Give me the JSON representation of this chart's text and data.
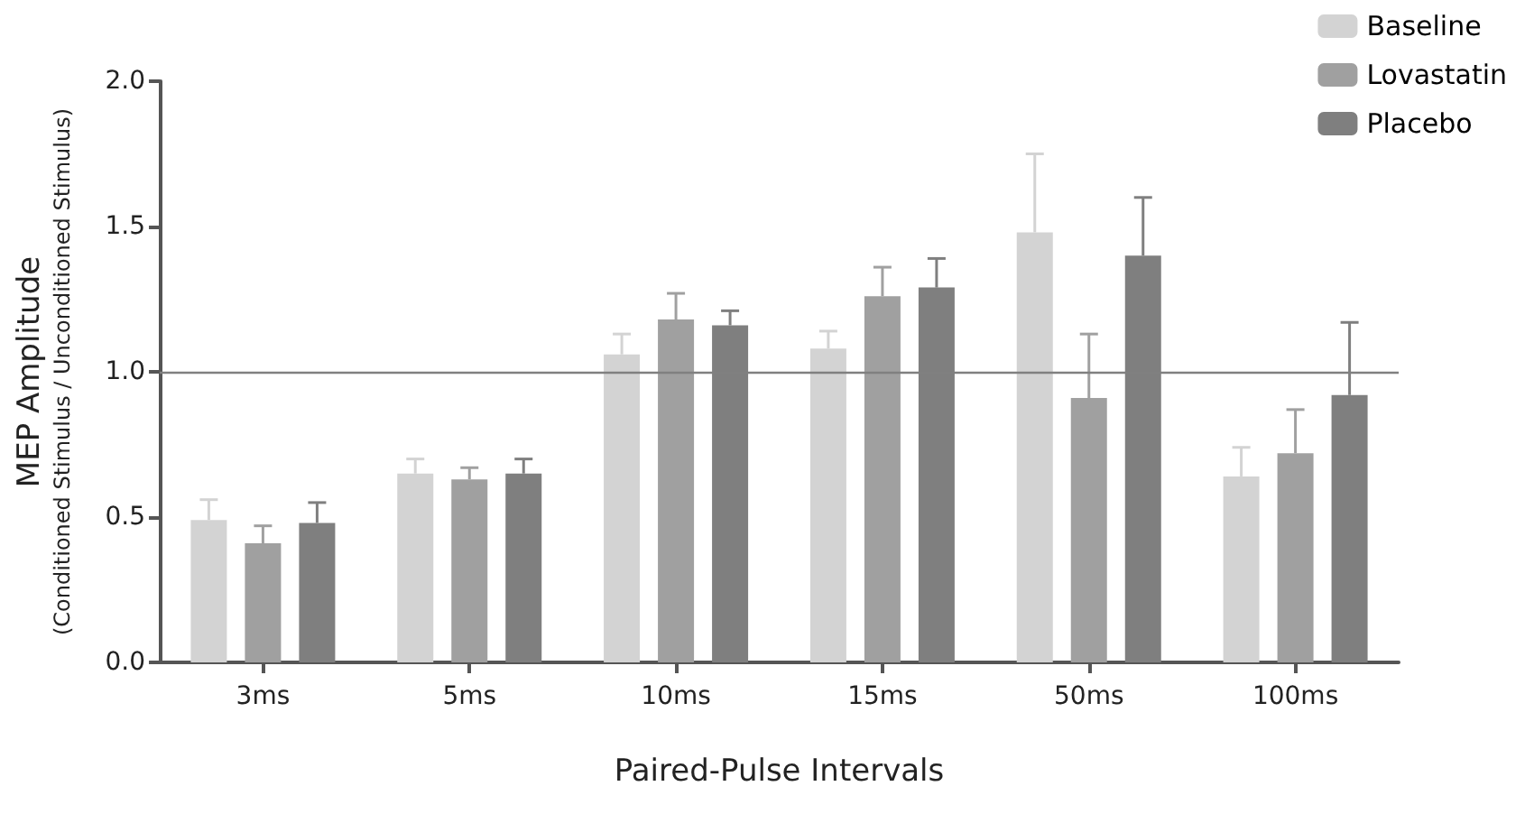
{
  "chart_data": {
    "type": "bar",
    "xlabel": "Paired-Pulse Intervals",
    "ylabel": "MEP Amplitude\n(Conditioned Stimulus / Unconditioned Stimulus)",
    "categories": [
      "3ms",
      "5ms",
      "10ms",
      "15ms",
      "50ms",
      "100ms"
    ],
    "series": [
      {
        "name": "Baseline",
        "color": "#d3d3d3",
        "values": [
          0.49,
          0.65,
          1.06,
          1.08,
          1.48,
          0.64
        ],
        "errors": [
          [
            0.49,
            0.56
          ],
          [
            0.65,
            0.7
          ],
          [
            1.06,
            1.13
          ],
          [
            1.08,
            1.14
          ],
          [
            1.48,
            1.75
          ],
          [
            0.64,
            0.74
          ]
        ]
      },
      {
        "name": "Lovastatin",
        "color": "#a0a0a0",
        "values": [
          0.41,
          0.63,
          1.18,
          1.26,
          0.91,
          0.72
        ],
        "errors": [
          [
            0.41,
            0.47
          ],
          [
            0.63,
            0.67
          ],
          [
            1.18,
            1.27
          ],
          [
            1.26,
            1.36
          ],
          [
            0.91,
            1.13
          ],
          [
            0.72,
            0.87
          ]
        ]
      },
      {
        "name": "Placebo",
        "color": "#7f7f7f",
        "values": [
          0.48,
          0.65,
          1.16,
          1.29,
          1.4,
          0.92
        ],
        "errors": [
          [
            0.48,
            0.55
          ],
          [
            0.65,
            0.7
          ],
          [
            1.16,
            1.21
          ],
          [
            1.29,
            1.39
          ],
          [
            1.4,
            1.6
          ],
          [
            0.92,
            1.17
          ]
        ]
      }
    ],
    "ylim": [
      0,
      2
    ],
    "yticks": [
      {
        "value": 0,
        "label": "0.0"
      },
      {
        "value": 0.5,
        "label": "0.5"
      },
      {
        "value": 1,
        "label": "1.0"
      },
      {
        "value": 1.5,
        "label": "1.5"
      },
      {
        "value": 2,
        "label": "2.0"
      }
    ],
    "ref_lines": [
      {
        "axis": "y",
        "value": 1,
        "color": "#808080"
      }
    ],
    "legend": "top right",
    "grid": false
  }
}
